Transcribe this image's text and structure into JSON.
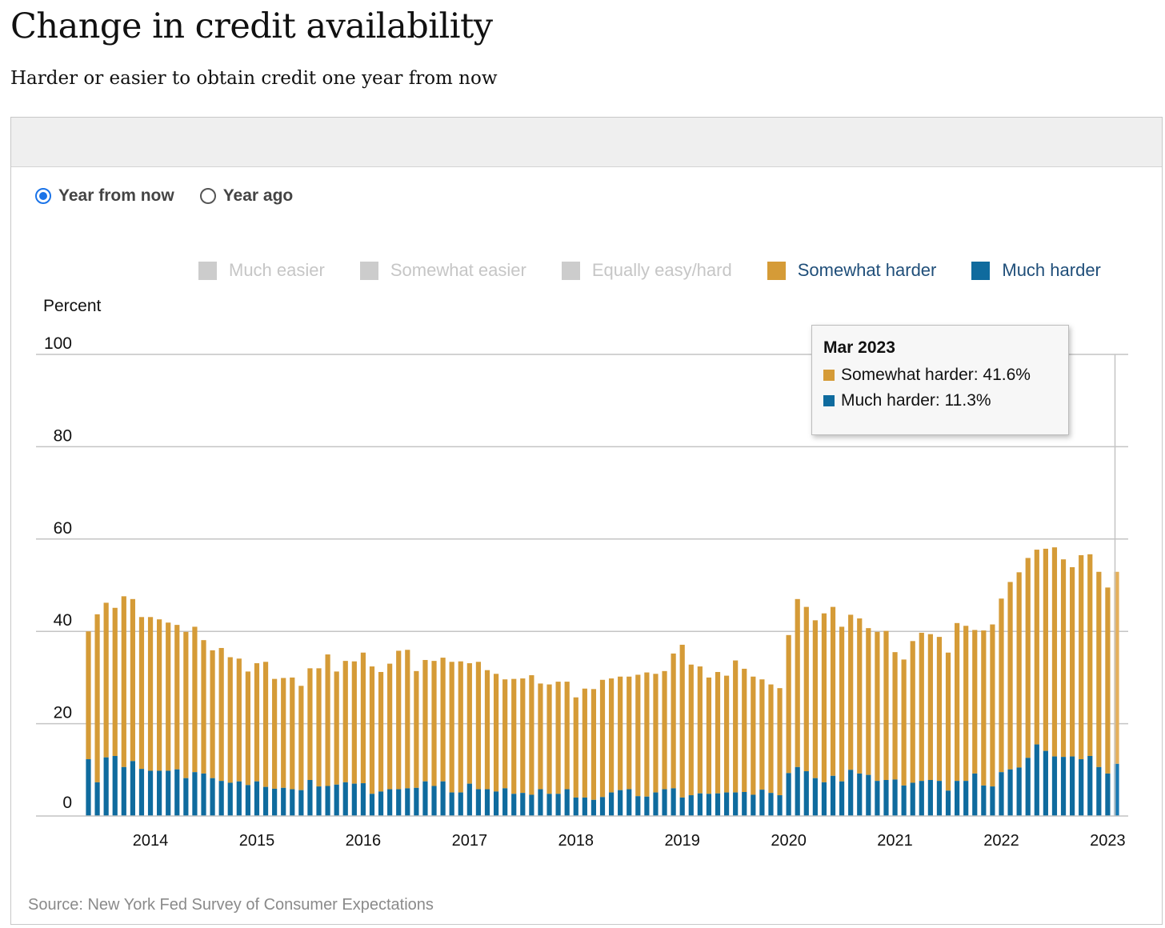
{
  "title": "Change in credit availability",
  "subtitle": "Harder or easier to obtain credit one year from now",
  "options": [
    {
      "label": "Year from now",
      "selected": true
    },
    {
      "label": "Year ago",
      "selected": false
    }
  ],
  "source": "Source: New York Fed Survey of Consumer Expectations",
  "tooltip": {
    "title": "Mar 2023",
    "rows": [
      {
        "label": "Somewhat harder: 41.6%",
        "color": "#d59b37"
      },
      {
        "label": "Much harder: 11.3%",
        "color": "#0f6b9e"
      }
    ]
  },
  "chart_data": {
    "type": "bar",
    "stacked": true,
    "ylabel": "Percent",
    "ylim": [
      0,
      100
    ],
    "yticks": [
      0,
      20,
      40,
      60,
      80,
      100
    ],
    "xtick_labels": [
      "2014",
      "2015",
      "2016",
      "2017",
      "2018",
      "2019",
      "2020",
      "2021",
      "2022",
      "2023"
    ],
    "x_start": "2013-06",
    "x_end": "2023-03",
    "legend_position": "top",
    "legend": [
      {
        "name": "Much easier",
        "color": "#cccccc",
        "active": false
      },
      {
        "name": "Somewhat easier",
        "color": "#cccccc",
        "active": false
      },
      {
        "name": "Equally easy/hard",
        "color": "#cccccc",
        "active": false
      },
      {
        "name": "Somewhat harder",
        "color": "#d59b37",
        "active": true
      },
      {
        "name": "Much harder",
        "color": "#0f6b9e",
        "active": true
      }
    ],
    "series": [
      {
        "name": "Much harder",
        "color": "#0f6b9e",
        "values": [
          12.3,
          7.3,
          12.7,
          13.0,
          10.6,
          11.9,
          10.2,
          9.8,
          9.8,
          9.8,
          10.1,
          8.2,
          9.5,
          9.2,
          8.2,
          7.6,
          7.2,
          7.5,
          6.7,
          7.5,
          6.3,
          5.9,
          6.1,
          5.8,
          5.6,
          7.8,
          6.4,
          6.5,
          6.8,
          7.3,
          7.0,
          7.1,
          4.8,
          5.3,
          5.8,
          5.8,
          6.0,
          6.1,
          7.5,
          6.5,
          7.5,
          5.1,
          5.1,
          7.0,
          5.8,
          5.8,
          5.3,
          6.0,
          4.8,
          5.0,
          4.6,
          5.8,
          4.8,
          4.8,
          5.8,
          4.0,
          4.0,
          3.5,
          4.1,
          5.1,
          5.6,
          5.8,
          4.3,
          4.2,
          5.1,
          5.8,
          6.0,
          4.0,
          4.5,
          4.9,
          4.8,
          4.9,
          5.1,
          5.1,
          5.2,
          4.6,
          5.7,
          5.0,
          4.5,
          9.3,
          10.6,
          9.7,
          8.2,
          7.3,
          8.7,
          7.5,
          10.0,
          9.2,
          8.9,
          7.6,
          7.8,
          7.9,
          6.6,
          7.2,
          7.6,
          7.8,
          7.6,
          5.5,
          7.6,
          7.6,
          9.2,
          6.6,
          6.4,
          9.5,
          10.1,
          10.5,
          12.6,
          15.5,
          14.1,
          12.9,
          12.8,
          12.9,
          12.3,
          13.0,
          10.6,
          9.2,
          11.3
        ]
      },
      {
        "name": "Somewhat harder",
        "color": "#d59b37",
        "values": [
          27.7,
          36.4,
          33.5,
          32.1,
          37.0,
          35.1,
          32.9,
          33.3,
          32.8,
          32.1,
          31.3,
          31.7,
          31.5,
          28.9,
          27.7,
          28.8,
          27.2,
          26.6,
          24.6,
          25.6,
          27.1,
          23.8,
          23.8,
          24.2,
          22.6,
          24.2,
          25.6,
          28.5,
          24.5,
          26.3,
          26.5,
          28.3,
          27.6,
          25.9,
          27.2,
          30.0,
          30.0,
          25.3,
          26.3,
          27.1,
          26.8,
          28.3,
          28.4,
          26.1,
          27.6,
          25.8,
          25.5,
          23.6,
          24.9,
          24.8,
          25.9,
          22.9,
          23.7,
          24.3,
          23.3,
          21.7,
          23.6,
          24.0,
          25.4,
          24.7,
          24.6,
          24.4,
          26.3,
          26.9,
          25.7,
          25.6,
          29.2,
          33.1,
          28.3,
          27.5,
          25.2,
          26.3,
          25.3,
          28.6,
          26.7,
          25.6,
          23.9,
          23.5,
          23.2,
          29.9,
          36.4,
          35.6,
          34.2,
          36.6,
          36.6,
          33.5,
          33.6,
          33.6,
          31.8,
          32.3,
          32.3,
          27.6,
          27.3,
          30.7,
          32.1,
          31.6,
          31.2,
          29.9,
          34.2,
          33.6,
          31.1,
          33.6,
          35.1,
          37.6,
          40.6,
          42.3,
          43.3,
          42.2,
          43.8,
          45.3,
          42.8,
          41.0,
          44.2,
          43.7,
          42.3,
          40.3,
          41.6
        ]
      }
    ]
  }
}
